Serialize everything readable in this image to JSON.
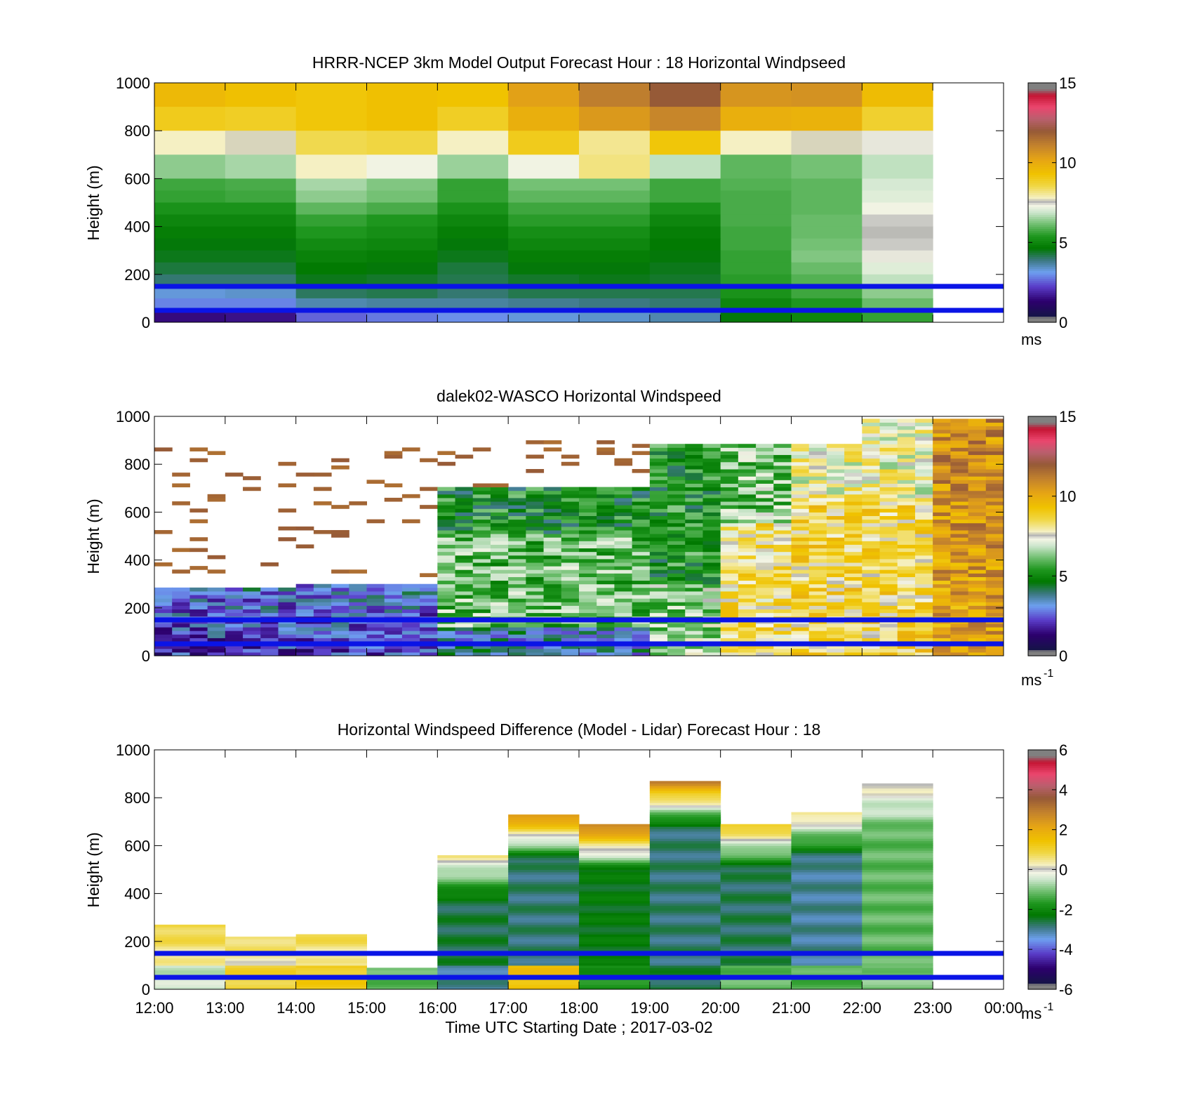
{
  "chart_data": [
    {
      "type": "heatmap",
      "title": "HRRR-NCEP 3km Model Output   Forecast Hour : 18 Horizontal Windpseed",
      "ylabel": "Height (m)",
      "ylim": [
        0,
        1000
      ],
      "yticks": [
        "0",
        "200",
        "400",
        "600",
        "800",
        "1000"
      ],
      "colorbar": {
        "range": [
          0,
          15
        ],
        "ticks": [
          "0",
          "5",
          "10",
          "15"
        ],
        "unit": "ms",
        "unit_sup": ""
      },
      "hours": [
        "12",
        "13",
        "14",
        "15",
        "16",
        "17",
        "18",
        "19",
        "20",
        "21",
        "22"
      ],
      "level_top_m": [
        1000,
        900,
        800,
        700,
        600,
        550,
        500,
        450,
        400,
        350,
        300,
        250,
        200,
        150,
        100,
        50
      ],
      "values": [
        [
          9.6,
          9.4,
          9.2,
          9.4,
          9.3,
          10.3,
          11.2,
          12.0,
          10.6,
          10.7,
          9.5
        ],
        [
          9.0,
          8.9,
          9.2,
          9.4,
          8.9,
          9.9,
          10.5,
          11.0,
          9.9,
          9.8,
          8.8
        ],
        [
          7.8,
          7.7,
          8.5,
          8.6,
          7.8,
          9.0,
          8.1,
          9.2,
          7.8,
          7.7,
          7.4
        ],
        [
          6.4,
          6.6,
          7.8,
          7.3,
          6.5,
          7.3,
          8.2,
          6.8,
          6.0,
          6.2,
          6.8
        ],
        [
          5.7,
          5.8,
          6.6,
          6.3,
          5.6,
          6.2,
          6.2,
          5.7,
          5.9,
          6.0,
          7.0
        ],
        [
          5.6,
          5.7,
          6.4,
          6.2,
          5.6,
          6.0,
          6.0,
          5.7,
          5.8,
          6.0,
          7.1
        ],
        [
          5.3,
          5.3,
          6.0,
          5.8,
          5.3,
          5.7,
          5.7,
          5.3,
          5.8,
          6.0,
          7.3
        ],
        [
          5.0,
          5.0,
          5.6,
          5.4,
          5.0,
          5.5,
          5.5,
          5.0,
          5.8,
          6.1,
          7.5
        ],
        [
          4.8,
          4.8,
          5.4,
          5.2,
          4.8,
          5.2,
          5.2,
          4.8,
          5.7,
          6.1,
          7.6
        ],
        [
          4.6,
          4.6,
          5.1,
          5.0,
          4.6,
          5.0,
          5.0,
          4.7,
          5.7,
          6.2,
          7.5
        ],
        [
          4.5,
          4.5,
          4.9,
          4.8,
          4.5,
          4.8,
          4.8,
          4.6,
          5.6,
          6.3,
          7.4
        ],
        [
          4.3,
          4.3,
          4.7,
          4.6,
          4.3,
          4.6,
          4.6,
          4.5,
          5.6,
          6.1,
          7.1
        ],
        [
          4.0,
          4.0,
          4.5,
          4.4,
          4.2,
          4.4,
          4.5,
          4.4,
          5.5,
          5.9,
          6.8
        ],
        [
          3.3,
          3.4,
          4.1,
          4.2,
          4.0,
          4.2,
          4.2,
          4.2,
          5.3,
          5.7,
          6.4
        ],
        [
          2.9,
          2.9,
          3.6,
          3.7,
          3.7,
          3.8,
          3.9,
          4.0,
          5.0,
          5.4,
          6.1
        ],
        [
          1.5,
          1.6,
          2.6,
          2.8,
          3.0,
          3.3,
          3.4,
          3.6,
          4.6,
          5.0,
          5.6
        ]
      ],
      "reference_lines_m": [
        150,
        50
      ]
    },
    {
      "type": "heatmap",
      "title": "dalek02-WASCO  Horizontal Windspeed",
      "ylabel": "Height (m)",
      "ylim": [
        0,
        1000
      ],
      "yticks": [
        "0",
        "200",
        "400",
        "600",
        "800",
        "1000"
      ],
      "colorbar": {
        "range": [
          0,
          15
        ],
        "ticks": [
          "0",
          "5",
          "10",
          "15"
        ],
        "unit": "ms",
        "unit_sup": "-1"
      },
      "time_range_h": [
        12,
        24
      ],
      "columns_per_hour": 4,
      "level_step_m": 15,
      "valid_top_m": [
        280,
        300,
        700,
        880,
        980
      ],
      "reference_lines_m": [
        150,
        50
      ]
    },
    {
      "type": "heatmap",
      "title": "Horizontal Windspeed Difference (Model - Lidar) Forecast Hour : 18",
      "ylabel": "Height (m)",
      "xlabel": "Time UTC  Starting Date ; 2017-03-02",
      "ylim": [
        0,
        1000
      ],
      "yticks": [
        "0",
        "200",
        "400",
        "600",
        "800",
        "1000"
      ],
      "xticks": [
        "12:00",
        "13:00",
        "14:00",
        "15:00",
        "16:00",
        "17:00",
        "18:00",
        "19:00",
        "20:00",
        "21:00",
        "22:00",
        "23:00",
        "00:00"
      ],
      "colorbar": {
        "range": [
          -6,
          6
        ],
        "ticks": [
          "-6",
          "-4",
          "-2",
          "0",
          "2",
          "4",
          "6"
        ],
        "unit": "ms",
        "unit_sup": "-1"
      },
      "hours": [
        "12",
        "13",
        "14",
        "15",
        "16",
        "17",
        "18",
        "19",
        "20",
        "21",
        "22"
      ],
      "column_top_m": [
        270,
        215,
        225,
        90,
        560,
        730,
        690,
        870,
        690,
        735,
        860
      ],
      "upper_profile": [
        1.0,
        0.8,
        0.8,
        null,
        0.5,
        2.8,
        3.2,
        3.0,
        1.5,
        0.8,
        0.3
      ],
      "mid_profile": [
        0.2,
        0.0,
        0.0,
        -1.5,
        -2.6,
        -2.8,
        -2.3,
        -2.8,
        -2.7,
        -3.0,
        -1.2
      ],
      "low_profile": [
        -0.5,
        1.0,
        1.2,
        -1.2,
        -3.0,
        1.5,
        -1.8,
        -2.6,
        -1.2,
        -1.3,
        -1.0
      ],
      "reference_lines_m": [
        150,
        50
      ]
    }
  ]
}
